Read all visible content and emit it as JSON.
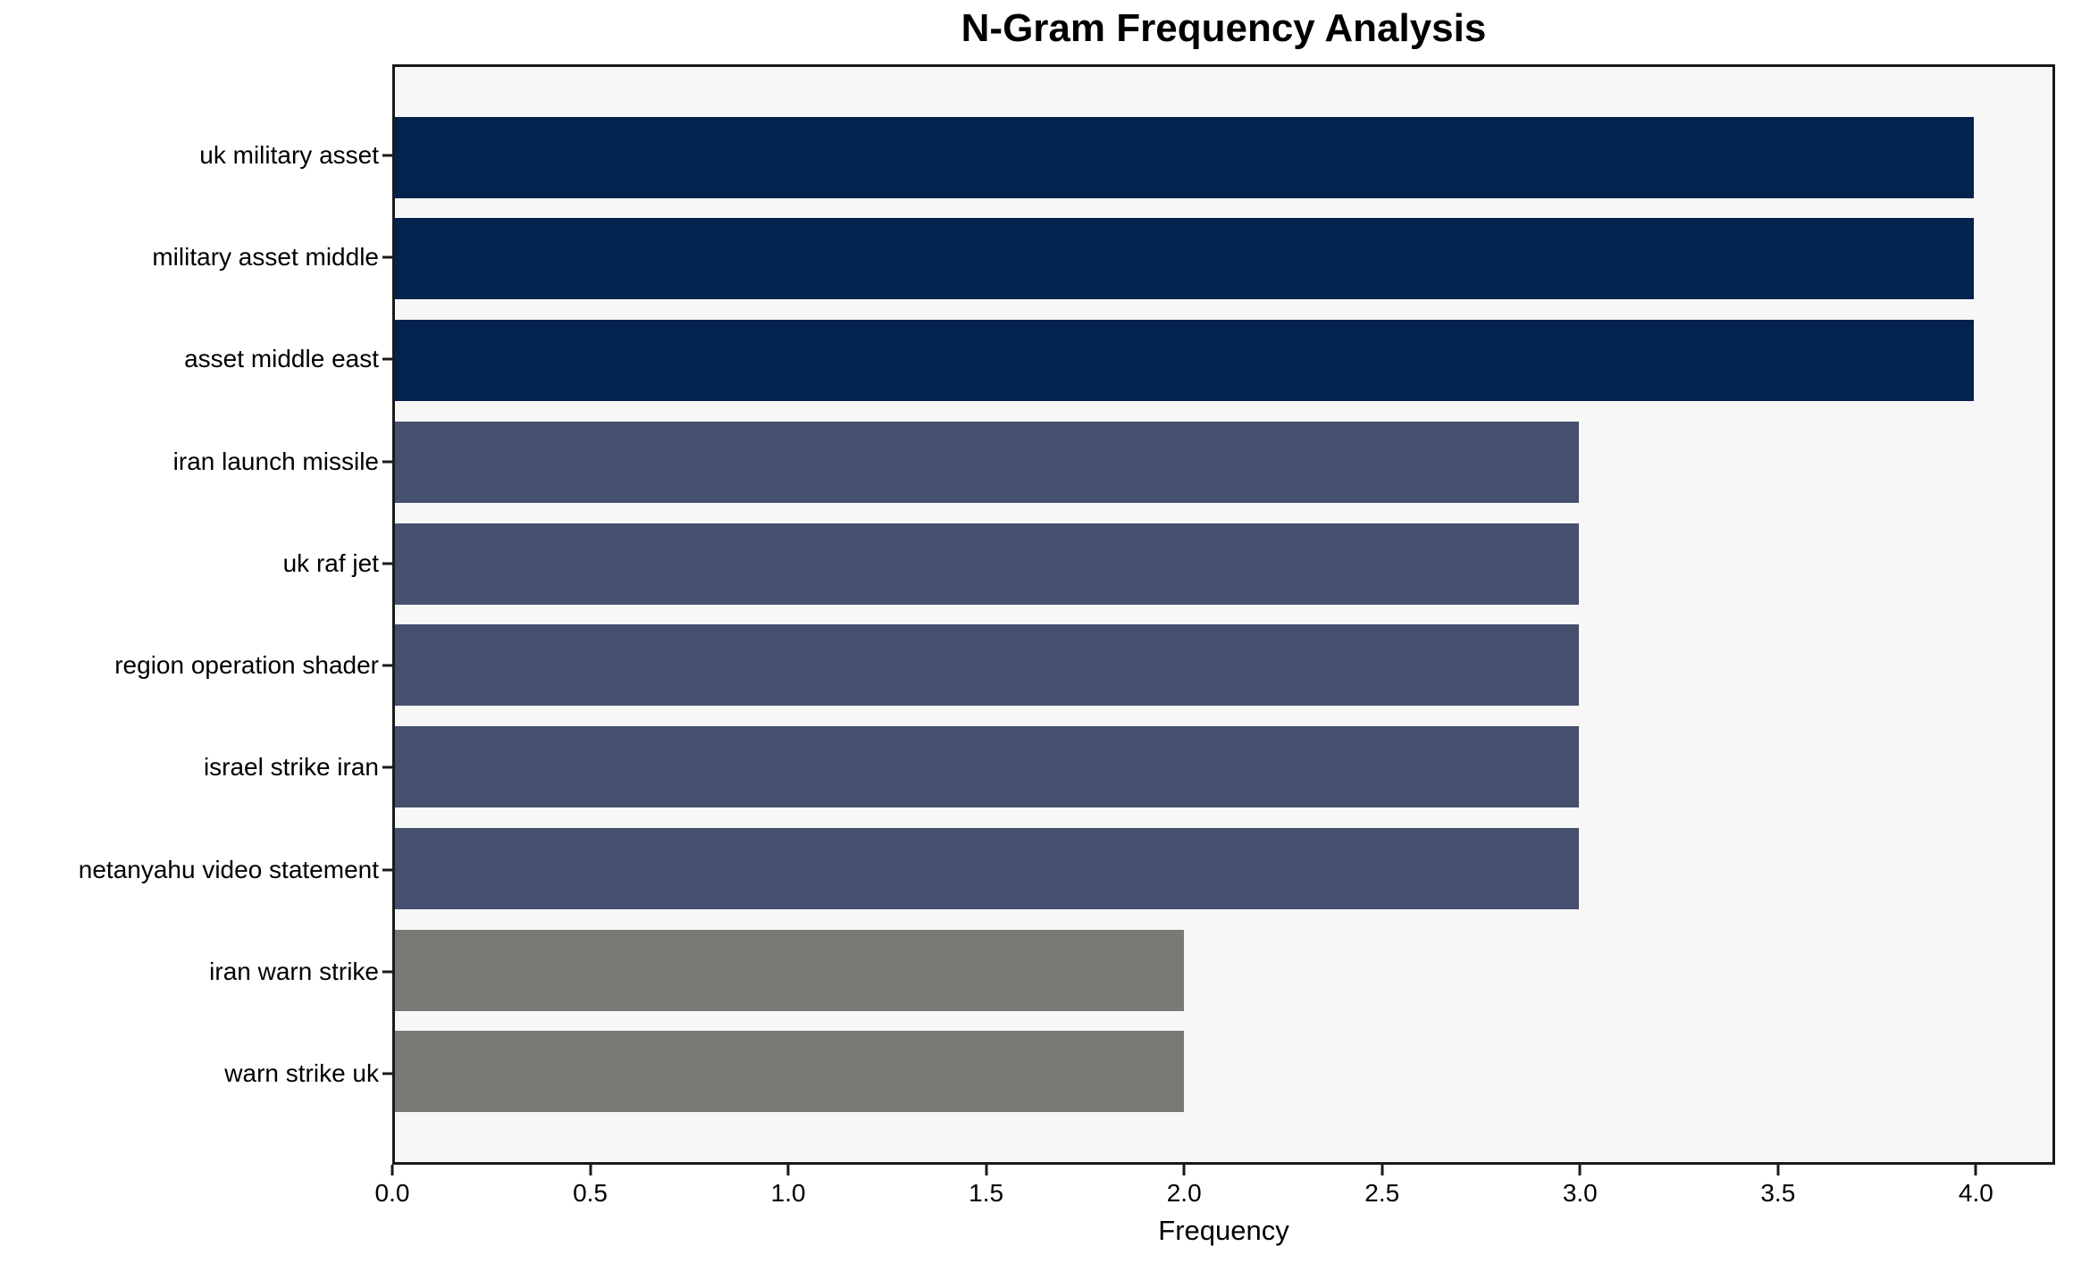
{
  "chart_data": {
    "type": "bar",
    "orientation": "horizontal",
    "title": "N-Gram Frequency Analysis",
    "xlabel": "Frequency",
    "ylabel": "",
    "categories": [
      "uk military asset",
      "military asset middle",
      "asset middle east",
      "iran launch missile",
      "uk raf jet",
      "region operation shader",
      "israel strike iran",
      "netanyahu video statement",
      "iran warn strike",
      "warn strike uk"
    ],
    "values": [
      4,
      4,
      4,
      3,
      3,
      3,
      3,
      3,
      2,
      2
    ],
    "bar_colors": [
      "#03234e",
      "#03234e",
      "#03234e",
      "#45506e",
      "#45506e",
      "#45506e",
      "#45506e",
      "#45506e",
      "#7b7974",
      "#7b7974"
    ],
    "xlim": [
      0,
      4.2
    ],
    "x_ticks": [
      0.0,
      0.5,
      1.0,
      1.5,
      2.0,
      2.5,
      3.0,
      3.5,
      4.0
    ],
    "x_tick_labels": [
      "0.0",
      "0.5",
      "1.0",
      "1.5",
      "2.0",
      "2.5",
      "3.0",
      "3.5",
      "4.0"
    ],
    "grid": false,
    "legend": "none",
    "plot_background": "#f7f7f7",
    "figure_background": "#ffffff",
    "spine_color": "#1a1a1a",
    "bar_height_fraction": 0.8,
    "outer_pad_units": 0.89
  }
}
